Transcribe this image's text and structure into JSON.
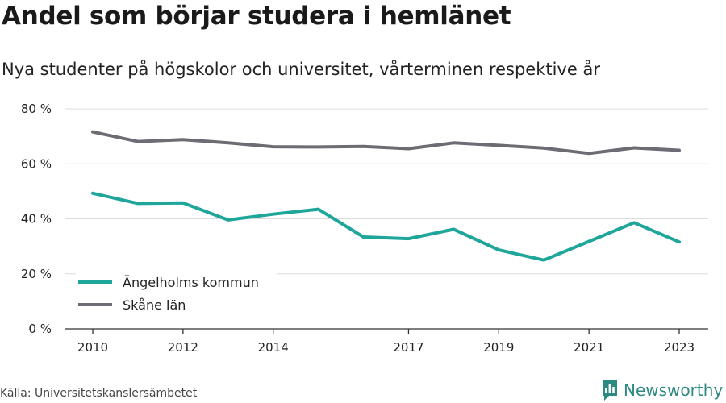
{
  "chart_data": {
    "type": "line",
    "title": "Andel som börjar studera i hemlänet",
    "subtitle": "Nya studenter på högskolor och universitet, vårterminen respektive år",
    "x": [
      2010,
      2011,
      2012,
      2013,
      2014,
      2015,
      2016,
      2017,
      2018,
      2019,
      2020,
      2021,
      2022,
      2023
    ],
    "x_tick_labels": [
      "2010",
      "2012",
      "2014",
      "2017",
      "2019",
      "2021",
      "2023"
    ],
    "x_tick_values": [
      2010,
      2012,
      2014,
      2017,
      2019,
      2021,
      2023
    ],
    "ylim": [
      0,
      80
    ],
    "y_tick_labels": [
      "0 %",
      "20 %",
      "40 %",
      "60 %",
      "80 %"
    ],
    "y_tick_values": [
      0,
      20,
      40,
      60,
      80
    ],
    "grid": true,
    "legend_position": "bottom-left",
    "series": [
      {
        "name": "Ängelholms kommun",
        "color": "#1fa69a",
        "values": [
          49.3,
          45.6,
          45.8,
          39.6,
          41.7,
          43.5,
          33.4,
          32.8,
          36.2,
          28.7,
          25.0,
          31.8,
          38.6,
          31.6
        ]
      },
      {
        "name": "Skåne län",
        "color": "#6d6b73",
        "values": [
          71.6,
          68.1,
          68.8,
          67.6,
          66.2,
          66.1,
          66.3,
          65.5,
          67.6,
          66.7,
          65.7,
          63.8,
          65.8,
          64.9
        ]
      }
    ]
  },
  "footer": {
    "source": "Källa: Universitetskanslersämbetet",
    "brand": "Newsworthy",
    "brand_icon": "bar-chart-icon",
    "brand_color": "#2c8a82"
  }
}
